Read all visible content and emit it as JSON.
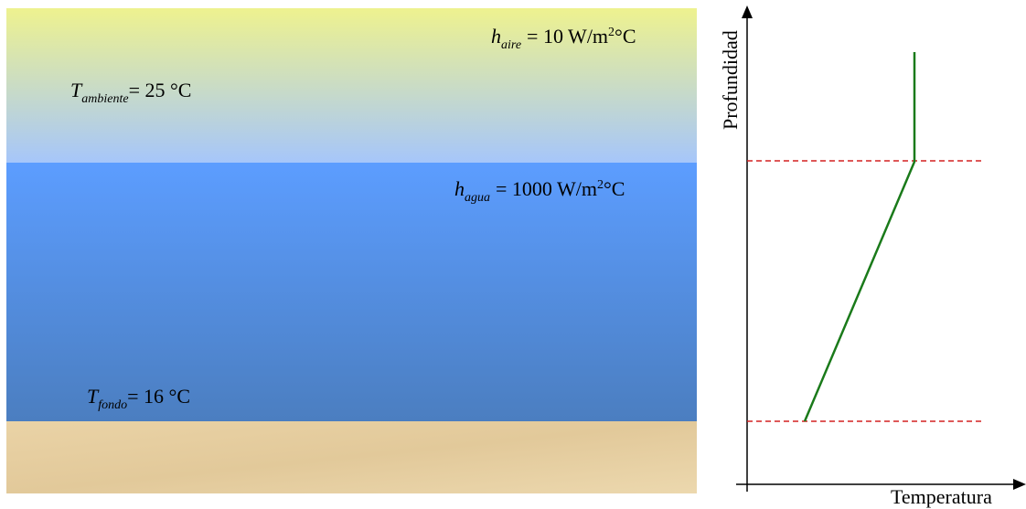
{
  "left_panel": {
    "h_aire": {
      "symbol": "h",
      "subscript": "aire",
      "text": "= 10 W/m",
      "superscript": "2",
      "unit": "°C"
    },
    "t_ambiente": {
      "symbol": "T",
      "subscript": "ambiente",
      "text": "= 25 °C"
    },
    "h_agua": {
      "symbol": "h",
      "subscript": "agua",
      "text": "= 1000 W/m",
      "superscript": "2",
      "unit": "°C"
    },
    "t_fondo": {
      "symbol": "T",
      "subscript": "fondo",
      "text": "= 16 °C"
    }
  },
  "right_panel": {
    "y_axis_label": "Profundidad",
    "x_axis_label": "Temperatura"
  }
}
